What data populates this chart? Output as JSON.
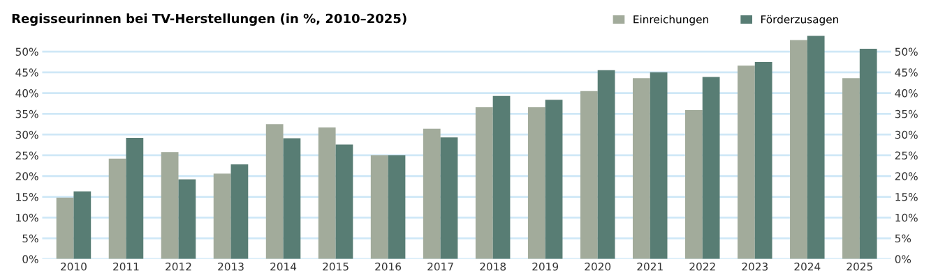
{
  "chart_data": {
    "type": "bar",
    "title": "Regisseurinnen bei TV-Herstellungen (in %, 2010–2025)",
    "categories": [
      "2010",
      "2011",
      "2012",
      "2013",
      "2014",
      "2015",
      "2016",
      "2017",
      "2018",
      "2019",
      "2020",
      "2021",
      "2022",
      "2023",
      "2024",
      "2025"
    ],
    "series": [
      {
        "name": "Einreichungen",
        "color": "#a2ab9b",
        "values": [
          14.8,
          24.2,
          25.8,
          20.6,
          32.5,
          31.7,
          25.0,
          31.4,
          36.6,
          36.6,
          40.5,
          43.6,
          35.9,
          46.6,
          52.8,
          43.6
        ]
      },
      {
        "name": "Förderzusagen",
        "color": "#587d74",
        "values": [
          16.3,
          29.2,
          19.2,
          22.8,
          29.1,
          27.6,
          25.0,
          29.3,
          39.3,
          38.4,
          45.5,
          45.0,
          43.9,
          47.5,
          53.8,
          50.7
        ]
      }
    ],
    "ylim": [
      0,
      54
    ],
    "yticks": [
      {
        "value": 0,
        "label": "0%"
      },
      {
        "value": 5,
        "label": "5%"
      },
      {
        "value": 10,
        "label": "10%"
      },
      {
        "value": 15,
        "label": "15%"
      },
      {
        "value": 20,
        "label": "20%"
      },
      {
        "value": 25,
        "label": "25%"
      },
      {
        "value": 30,
        "label": "30%"
      },
      {
        "value": 35,
        "label": "35%"
      },
      {
        "value": 40,
        "label": "40%"
      },
      {
        "value": 45,
        "label": "45%"
      },
      {
        "value": 50,
        "label": "50%"
      }
    ],
    "y2lim": [
      0,
      54
    ],
    "y2ticks": [
      {
        "value": 0,
        "label": "0%"
      },
      {
        "value": 5,
        "label": "5%"
      },
      {
        "value": 10,
        "label": "10%"
      },
      {
        "value": 15,
        "label": "15%"
      },
      {
        "value": 20,
        "label": "20%"
      },
      {
        "value": 25,
        "label": "25%"
      },
      {
        "value": 30,
        "label": "30%"
      },
      {
        "value": 35,
        "label": "35%"
      },
      {
        "value": 40,
        "label": "40%"
      },
      {
        "value": 45,
        "label": "45%"
      },
      {
        "value": 50,
        "label": "50%"
      }
    ],
    "grid": "y",
    "legend": "top right"
  }
}
